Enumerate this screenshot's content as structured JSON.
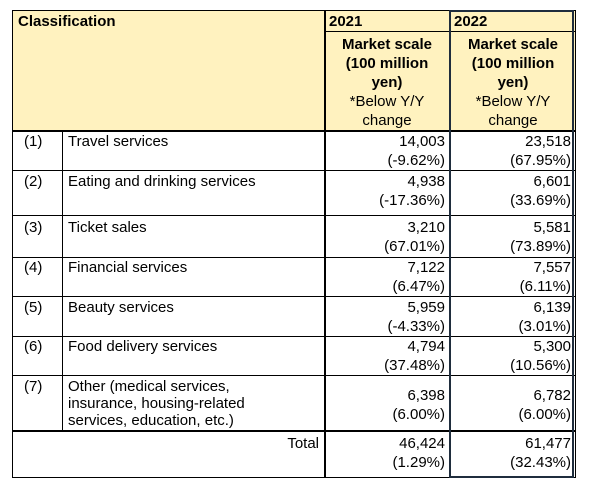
{
  "header": {
    "classification": "Classification",
    "year_2021": "2021",
    "year_2022": "2022",
    "scale_lines": [
      "Market scale",
      "(100 million",
      "yen)"
    ],
    "note_lines": [
      "*Below Y/Y",
      "change"
    ]
  },
  "rows": [
    {
      "num": "(1)",
      "label_lines": [
        "Travel services"
      ],
      "v2021": "14,003",
      "c2021": "(-9.62%)",
      "v2022": "23,518",
      "c2022": "(67.95%)"
    },
    {
      "num": "(2)",
      "label_lines": [
        "Eating and drinking services"
      ],
      "v2021": "4,938",
      "c2021": "(-17.36%)",
      "v2022": "6,601",
      "c2022": "(33.69%)"
    },
    {
      "num": "(3)",
      "label_lines": [
        "Ticket sales"
      ],
      "v2021": "3,210",
      "c2021": "(67.01%)",
      "v2022": "5,581",
      "c2022": "(73.89%)"
    },
    {
      "num": "(4)",
      "label_lines": [
        "Financial services"
      ],
      "v2021": "7,122",
      "c2021": "(6.47%)",
      "v2022": "7,557",
      "c2022": "(6.11%)"
    },
    {
      "num": "(5)",
      "label_lines": [
        "Beauty services"
      ],
      "v2021": "5,959",
      "c2021": "(-4.33%)",
      "v2022": "6,139",
      "c2022": "(3.01%)"
    },
    {
      "num": "(6)",
      "label_lines": [
        "Food delivery services"
      ],
      "v2021": "4,794",
      "c2021": "(37.48%)",
      "v2022": "5,300",
      "c2022": "(10.56%)"
    },
    {
      "num": "(7)",
      "label_lines": [
        "Other (medical services,",
        "insurance, housing-related",
        "services, education, etc.)"
      ],
      "v2021": "6,398",
      "c2021": "(6.00%)",
      "v2022": "6,782",
      "c2022": "(6.00%)"
    }
  ],
  "total": {
    "label": "Total",
    "v2021": "46,424",
    "c2021": "(1.29%)",
    "v2022": "61,477",
    "c2022": "(32.43%)"
  }
}
